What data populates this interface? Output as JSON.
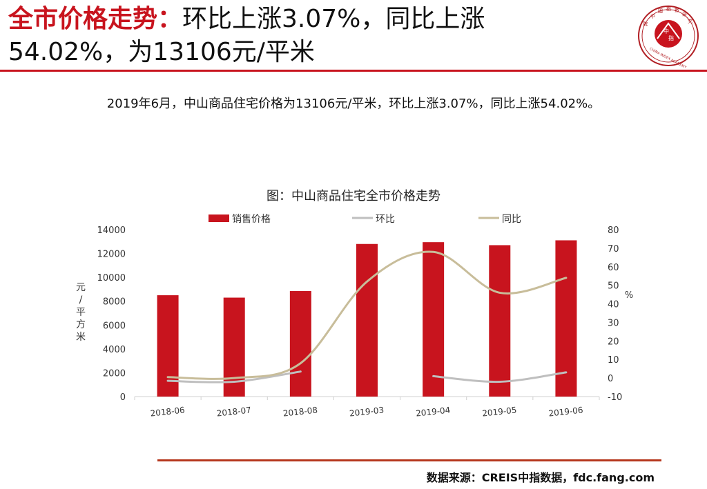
{
  "header": {
    "title_accent": "全市价格走势：",
    "title_rest_line1": "环比上涨3.07%，同比上涨",
    "title_line2": "54.02%，为13106元/平米"
  },
  "logo": {
    "chinese_chars": [
      "中",
      "國",
      "指",
      "數",
      "研",
      "究",
      "院"
    ],
    "center_chars": [
      "中",
      "指"
    ],
    "english": "CHINA INDEX ACADEMY",
    "colors": {
      "ring": "#b11e23",
      "inner": "#c8141e"
    }
  },
  "summary": "2019年6月，中山商品住宅价格为13106元/平米，环比上涨3.07%，同比上涨54.02%。",
  "chart_title": "图：中山商品住宅全市价格走势",
  "chart_data": {
    "type": "bar",
    "categories": [
      "2018-06",
      "2018-07",
      "2018-08",
      "2019-03",
      "2019-04",
      "2019-05",
      "2019-06"
    ],
    "series": [
      {
        "name": "销售价格",
        "type": "bar",
        "axis": "left",
        "color": "#c8141e",
        "values": [
          8500,
          8300,
          8850,
          12800,
          12950,
          12700,
          13106
        ]
      },
      {
        "name": "环比",
        "type": "line",
        "axis": "right",
        "color": "#bfbfbf",
        "values": [
          -1.5,
          -2,
          3.5,
          null,
          1,
          -2,
          3.07
        ]
      },
      {
        "name": "同比",
        "type": "line",
        "axis": "right",
        "color": "#c8bd9a",
        "values": [
          0.5,
          0,
          8,
          52,
          68,
          46,
          54.02
        ]
      }
    ],
    "ylabel_left": "元/平方米",
    "ylabel_right": "%",
    "ylim_left": [
      0,
      14000
    ],
    "yticks_left": [
      0,
      2000,
      4000,
      6000,
      8000,
      10000,
      12000,
      14000
    ],
    "ylim_right": [
      -10,
      80
    ],
    "yticks_right": [
      -10,
      0,
      10,
      20,
      30,
      40,
      50,
      60,
      70,
      80
    ],
    "legend_position": "top",
    "grid": false
  },
  "footer": {
    "source": "数据来源：CREIS中指数据，fdc.fang.com"
  }
}
